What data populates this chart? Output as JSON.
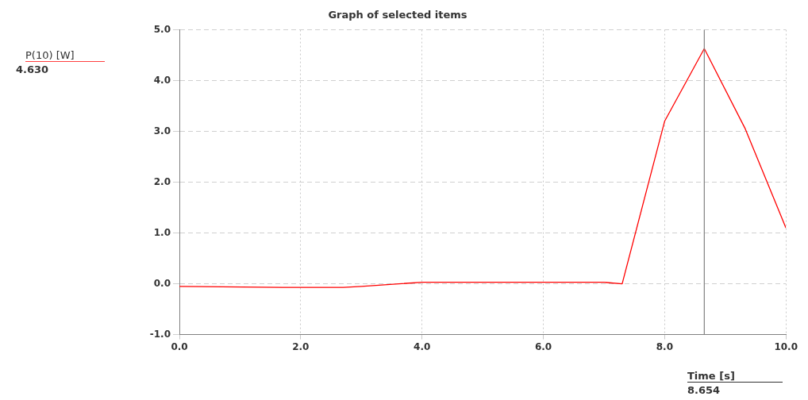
{
  "chart_data": {
    "type": "line",
    "title": "Graph of selected items",
    "xlabel": "Time [s]",
    "x": [
      0,
      1.7,
      2.7,
      3.0,
      4.0,
      5.5,
      7.0,
      7.3,
      8.0,
      8.654,
      9.33,
      10.0
    ],
    "series": [
      {
        "color": "#ff0000",
        "values": [
          -0.05,
          -0.07,
          -0.07,
          -0.05,
          0.03,
          0.03,
          0.03,
          0.0,
          3.2,
          4.63,
          3.05,
          1.1
        ]
      }
    ],
    "xlim": [
      0,
      10
    ],
    "xticks": [
      {
        "value": 0,
        "label": "0.0"
      },
      {
        "value": 2,
        "label": "2.0"
      },
      {
        "value": 4,
        "label": "4.0"
      },
      {
        "value": 6,
        "label": "6.0"
      },
      {
        "value": 8,
        "label": "8.0"
      },
      {
        "value": 10,
        "label": "10.0"
      }
    ],
    "ylim": [
      -1,
      5
    ],
    "yticks": [
      {
        "value": -1,
        "label": "-1.0"
      },
      {
        "value": 0,
        "label": "0.0"
      },
      {
        "value": 1,
        "label": "1.0"
      },
      {
        "value": 2,
        "label": "2.0"
      },
      {
        "value": 3,
        "label": "3.0"
      },
      {
        "value": 4,
        "label": "4.0"
      },
      {
        "value": 5,
        "label": "5.0"
      }
    ],
    "ref_lines": [
      {
        "axis": "x",
        "value": 8.654,
        "color": "#808080"
      }
    ],
    "annotations": [
      "P(10) [W]",
      "4.630",
      "8.654"
    ],
    "grid": true,
    "legend": false,
    "marker": "none",
    "line_style": "solid"
  }
}
